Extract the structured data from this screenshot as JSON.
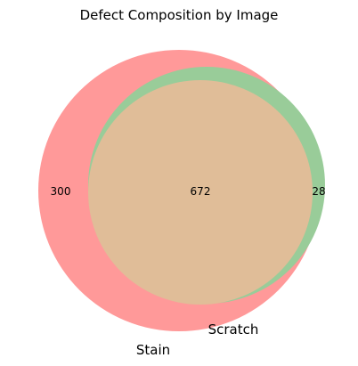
{
  "chart_data": {
    "type": "venn",
    "title": "Defect Composition by Image",
    "sets": [
      {
        "name": "Stain",
        "color": "#ff9999"
      },
      {
        "name": "Scratch",
        "color": "#99cc99"
      }
    ],
    "intersection_color": "#e0bd98",
    "regions": {
      "stain_only": 300,
      "intersection": 672,
      "scratch_only": 28
    }
  }
}
